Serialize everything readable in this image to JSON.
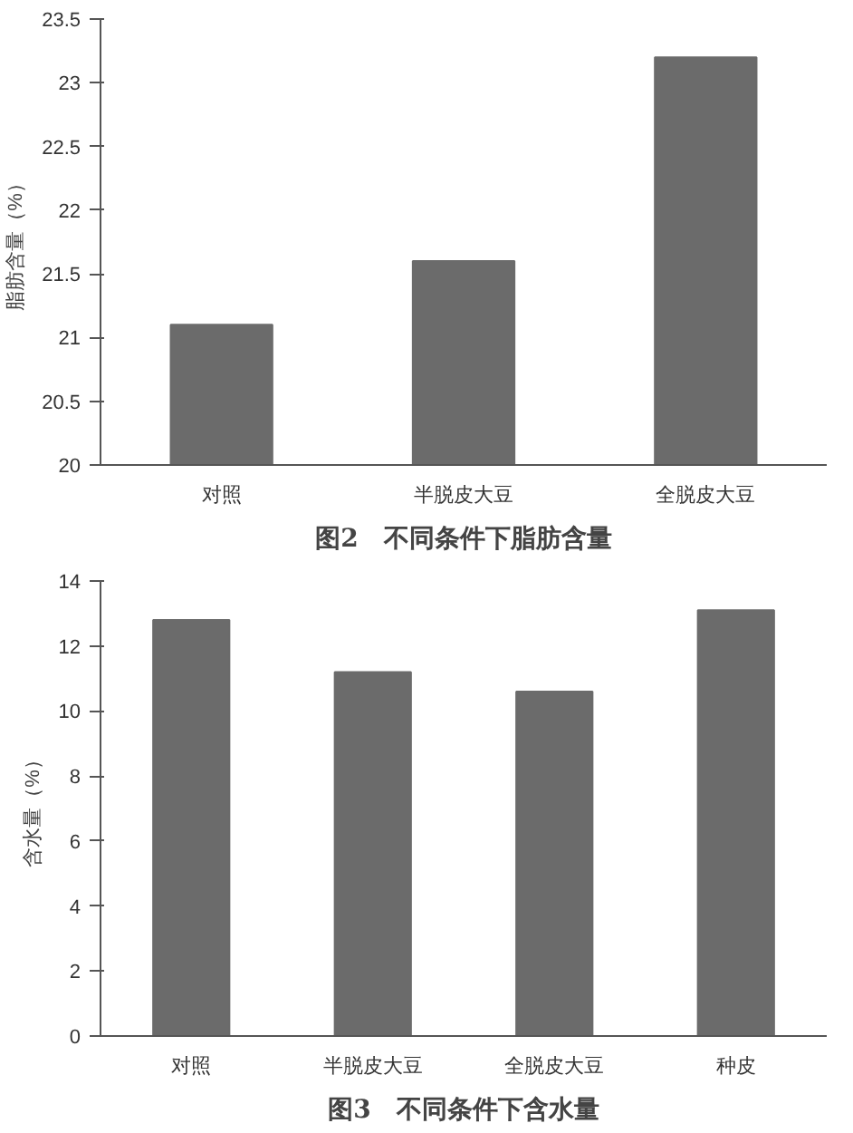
{
  "chart_data": [
    {
      "type": "bar",
      "title": "图2　不同条件下脂肪含量",
      "ylabel": "脂肪含量（%）",
      "categories": [
        "对照",
        "半脱皮大豆",
        "全脱皮大豆"
      ],
      "values": [
        21.1,
        21.6,
        23.2
      ],
      "color": "#6b6b6b",
      "ylim": [
        20,
        23.5
      ],
      "yticks": [
        20,
        20.5,
        21,
        21.5,
        22,
        22.5,
        23,
        23.5
      ]
    },
    {
      "type": "bar",
      "title": "图3　不同条件下含水量",
      "ylabel": "含水量（%）",
      "categories": [
        "对照",
        "半脱皮大豆",
        "全脱皮大豆",
        "种皮"
      ],
      "values": [
        12.8,
        11.2,
        10.6,
        13.1
      ],
      "color": "#6b6b6b",
      "ylim": [
        0,
        14
      ],
      "yticks": [
        0,
        2,
        4,
        6,
        8,
        10,
        12,
        14
      ]
    }
  ]
}
